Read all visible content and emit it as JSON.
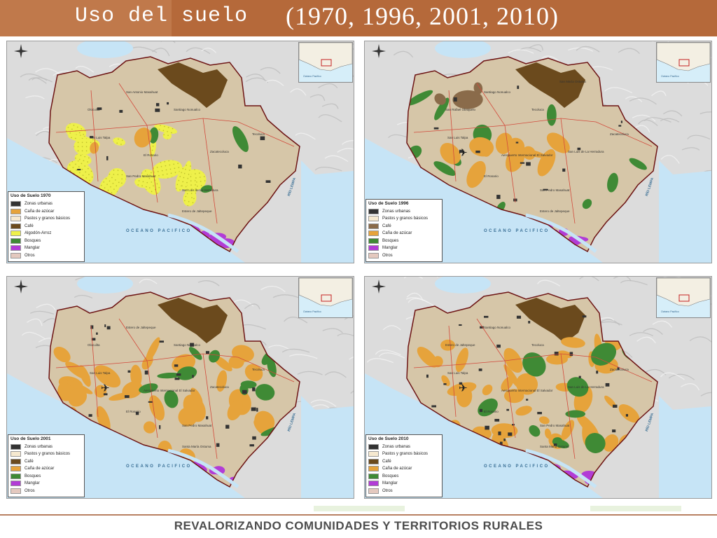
{
  "title": {
    "part1": "Uso del suelo",
    "part2": "(1970, 1996, 2001, 2010)"
  },
  "common_labels": {
    "ocean": "OCEANO PACIFICO",
    "river": "RÍO LEMPA",
    "inset_ocean": "Océano Pacífico"
  },
  "colors": {
    "header": "#c0794b",
    "urban": "#333333",
    "pastos": "#f6e9d0",
    "cafe": "#6b4a1d",
    "cana": "#e6a33b",
    "algodon": "#eef04a",
    "bosques": "#3f8a35",
    "manglar": "#b23cd6",
    "otros": "#e4c9bf",
    "water": "#c6e4f6"
  },
  "maps": [
    {
      "legend_title": "Uso de Suelo 1970",
      "legend": [
        {
          "label": "Zonas urbanas",
          "color": "#333333"
        },
        {
          "label": "Caña de azúcar",
          "color": "#e6a33b"
        },
        {
          "label": "Pastos y granos básicos",
          "color": "#f6e9d0"
        },
        {
          "label": "Café",
          "color": "#6b4a1d"
        },
        {
          "label": "Algodón-Arroz",
          "color": "#eef04a"
        },
        {
          "label": "Bosques",
          "color": "#3f8a35"
        },
        {
          "label": "Manglar",
          "color": "#b23cd6"
        },
        {
          "label": "Otros",
          "color": "#e4c9bf"
        }
      ],
      "towns": [
        "San Luis Talpa",
        "El Rosario",
        "San Pedro Masahuat",
        "San Luis de La Herradura",
        "Zacatecoluca",
        "Tecoluca",
        "Santiago Nonualco",
        "San Antonio Masahuat",
        "Olocuilta",
        "Estero de Jaltepeque"
      ]
    },
    {
      "legend_title": "Uso de Suelo 1996",
      "legend": [
        {
          "label": "Zonas urbanas",
          "color": "#333333"
        },
        {
          "label": "Pastos y granos básicos",
          "color": "#f6e9d0"
        },
        {
          "label": "Café",
          "color": "#8a6b4a"
        },
        {
          "label": "Caña de azúcar",
          "color": "#e6a33b"
        },
        {
          "label": "Bosques",
          "color": "#3f8a35"
        },
        {
          "label": "Manglar",
          "color": "#b23cd6"
        },
        {
          "label": "Otros",
          "color": "#e4c9bf"
        }
      ],
      "towns": [
        "San Luis Talpa",
        "Aeropuerto Internacional El Salvador",
        "El Rosario",
        "San Pedro Masahuat",
        "San Luis de La Herradura",
        "Zacatecoluca",
        "Tecoluca",
        "Santiago Nonualco",
        "San Rafael Obrajuelo",
        "Estero de Jaltepeque",
        "San María Ostuma"
      ]
    },
    {
      "legend_title": "Uso de Suelo 2001",
      "legend": [
        {
          "label": "Zonas urbanas",
          "color": "#333333"
        },
        {
          "label": "Pastos y granos básicos",
          "color": "#f6e9d0"
        },
        {
          "label": "Café",
          "color": "#6b4a1d"
        },
        {
          "label": "Caña de azúcar",
          "color": "#e6a33b"
        },
        {
          "label": "Bosques",
          "color": "#3f8a35"
        },
        {
          "label": "Manglar",
          "color": "#b23cd6"
        },
        {
          "label": "Otros",
          "color": "#e4c9bf"
        }
      ],
      "towns": [
        "San Luis Talpa",
        "Aeropuerto Internacional El Salvador",
        "El Rosario",
        "San Pedro Masahuat",
        "Zacatecoluca",
        "Tecoluca",
        "Santiago Nonualco",
        "Estero de Jaltepeque",
        "Olocuilta",
        "Santa María Ostuma"
      ]
    },
    {
      "legend_title": "Uso de Suelo 2010",
      "legend": [
        {
          "label": "Zonas urbanas",
          "color": "#333333"
        },
        {
          "label": "Pastos y granos básicos",
          "color": "#f6e9d0"
        },
        {
          "label": "Café",
          "color": "#6b4a1d"
        },
        {
          "label": "Caña de azúcar",
          "color": "#e6a33b"
        },
        {
          "label": "Bosques",
          "color": "#3f8a35"
        },
        {
          "label": "Manglar",
          "color": "#b23cd6"
        },
        {
          "label": "Otros",
          "color": "#e4c9bf"
        }
      ],
      "towns": [
        "San Luis Talpa",
        "Aeropuerto Internacional El Salvador",
        "El Rosario",
        "San Pedro Masahuat",
        "San Luis de La Herradura",
        "Zacatecoluca",
        "Tecoluca",
        "Santiago Nonualco",
        "Estero de Jaltepeque",
        "Santa María Ostuma"
      ]
    }
  ],
  "footer": {
    "text": "REVALORIZANDO COMUNIDADES Y TERRITORIOS RURALES"
  }
}
